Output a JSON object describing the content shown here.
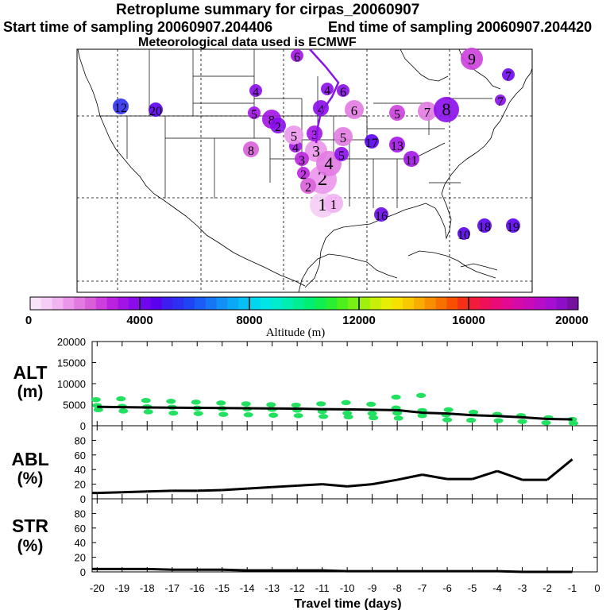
{
  "header": {
    "title": "Retroplume summary for cirpas_20060907",
    "start_label": "Start time of sampling 20060907.204406",
    "end_label": "End time of sampling 20060907.204420",
    "met_label": "Meteorological data used is ECMWF"
  },
  "colorbar": {
    "ticks": [
      "0",
      "4000",
      "8000",
      "12000",
      "16000",
      "20000"
    ],
    "label": "Altitude (m)",
    "range": [
      0,
      20000
    ],
    "colors": [
      "#f9e3f9",
      "#f6cdf6",
      "#f1b3f1",
      "#eb96eb",
      "#e27ae2",
      "#d95fd9",
      "#cc3fdc",
      "#bb22e0",
      "#a214e6",
      "#8a0cea",
      "#6f06ee",
      "#5a00ee",
      "#3c1ef0",
      "#2d2ff2",
      "#1f44f4",
      "#1a5cf6",
      "#1676f6",
      "#1290f6",
      "#0aa9f6",
      "#06c0f4",
      "#00d6f0",
      "#00e6e6",
      "#00eccc",
      "#00eeb0",
      "#00ee92",
      "#00ee72",
      "#10ee50",
      "#2aee30",
      "#4ef01c",
      "#78f014",
      "#a0f00e",
      "#c6f00a",
      "#e6ee06",
      "#f6e000",
      "#f8c800",
      "#f8ac00",
      "#f88e00",
      "#f87000",
      "#f85000",
      "#f63018",
      "#f21c3a",
      "#ee1058",
      "#ea0a78",
      "#e20a92",
      "#d60aa6",
      "#c80ab8",
      "#b80cc6",
      "#a60ed2",
      "#8e0ec8",
      "#76109e"
    ]
  },
  "map": {
    "release_marker": "1",
    "plumes": [
      {
        "label": "1",
        "alt": 600
      },
      {
        "label": "1",
        "alt": 800
      },
      {
        "label": "2",
        "alt": 1500
      },
      {
        "label": "2",
        "alt": 2200
      },
      {
        "label": "2",
        "alt": 3000
      },
      {
        "label": "3",
        "alt": 1400
      },
      {
        "label": "3",
        "alt": 3000
      },
      {
        "label": "4",
        "alt": 1800
      },
      {
        "label": "4",
        "alt": 3500
      },
      {
        "label": "4",
        "alt": 3900
      },
      {
        "label": "4",
        "alt": 3800
      },
      {
        "label": "5",
        "alt": 1200
      },
      {
        "label": "5",
        "alt": 1800
      },
      {
        "label": "5",
        "alt": 2600
      },
      {
        "label": "5",
        "alt": 3200
      },
      {
        "label": "6",
        "alt": 1600
      },
      {
        "label": "6",
        "alt": 3200
      },
      {
        "label": "7",
        "alt": 1800
      },
      {
        "label": "7",
        "alt": 4200
      },
      {
        "label": "8",
        "alt": 2000
      },
      {
        "label": "8",
        "alt": 3300
      },
      {
        "label": "8",
        "alt": 3700
      },
      {
        "label": "9",
        "alt": 2600
      },
      {
        "label": "10",
        "alt": 4600
      },
      {
        "label": "11",
        "alt": 3500
      },
      {
        "label": "12",
        "alt": 5500
      },
      {
        "label": "13",
        "alt": 3500
      },
      {
        "label": "16",
        "alt": 4300
      },
      {
        "label": "17",
        "alt": 4400
      },
      {
        "label": "18",
        "alt": 4600
      },
      {
        "label": "19",
        "alt": 4700
      },
      {
        "label": "20",
        "alt": 4500
      },
      {
        "label": "2",
        "alt": 3600
      },
      {
        "label": "3",
        "alt": 3400
      },
      {
        "label": "4",
        "alt": 3600
      },
      {
        "label": "5",
        "alt": 3800
      },
      {
        "label": "6",
        "alt": 3600
      },
      {
        "label": "7",
        "alt": 3900
      }
    ]
  },
  "chart_data": [
    {
      "type": "scatter",
      "title": "ALT (m)",
      "ylabel_line1": "ALT",
      "ylabel_line2": "(m)",
      "ylim": [
        0,
        20000
      ],
      "yticks": [
        "0",
        "5000",
        "10000",
        "15000",
        "20000"
      ],
      "xlim": [
        -20,
        0
      ],
      "median_line": {
        "x": [
          -20,
          -19,
          -18,
          -17,
          -16,
          -15,
          -14,
          -13,
          -12,
          -11,
          -10,
          -9,
          -8,
          -7,
          -6,
          -5,
          -4,
          -3,
          -2,
          -1
        ],
        "y": [
          4500,
          4400,
          4350,
          4300,
          4250,
          4200,
          4150,
          4100,
          4050,
          3950,
          3900,
          3800,
          3700,
          3100,
          2900,
          2500,
          2300,
          2000,
          1600,
          1500
        ]
      },
      "scatter": {
        "x": [
          -20,
          -20,
          -20,
          -19,
          -19,
          -19,
          -18,
          -18,
          -18,
          -17,
          -17,
          -17,
          -16,
          -16,
          -16,
          -15,
          -15,
          -15,
          -14,
          -14,
          -14,
          -13,
          -13,
          -13,
          -12,
          -12,
          -12,
          -11,
          -11,
          -11,
          -10,
          -10,
          -10,
          -9,
          -9,
          -9,
          -8,
          -8,
          -8,
          -7,
          -7,
          -6,
          -6,
          -6,
          -5,
          -5,
          -4,
          -4,
          -3,
          -3,
          -2,
          -2,
          -1,
          -1,
          -8,
          -7
        ],
        "y": [
          6200,
          4800,
          3800,
          6400,
          4600,
          3500,
          6000,
          4500,
          3300,
          5800,
          4400,
          3000,
          5600,
          4200,
          2900,
          5400,
          4100,
          2700,
          5200,
          4000,
          2600,
          5000,
          3900,
          2500,
          4900,
          3700,
          2400,
          5200,
          3400,
          2200,
          5500,
          3000,
          2100,
          5100,
          2900,
          1900,
          6800,
          3000,
          1800,
          7200,
          2400,
          3800,
          2600,
          1400,
          3200,
          1300,
          2700,
          1200,
          2400,
          1000,
          1900,
          700,
          1500,
          600,
          4200,
          3600
        ]
      }
    },
    {
      "type": "line",
      "title": "ABL (%)",
      "ylabel_line1": "ABL",
      "ylabel_line2": "(%)",
      "ylim": [
        0,
        100
      ],
      "yticks": [
        "0",
        "20",
        "40",
        "60",
        "80"
      ],
      "x": [
        -20,
        -19,
        -18,
        -17,
        -16,
        -15,
        -14,
        -13,
        -12,
        -11,
        -10,
        -9,
        -8,
        -7,
        -6,
        -5,
        -4,
        -3,
        -2,
        -1
      ],
      "values": [
        8,
        9,
        10,
        11,
        11,
        12,
        14,
        16,
        18,
        20,
        17,
        20,
        26,
        33,
        27,
        27,
        38,
        26,
        26,
        54
      ]
    },
    {
      "type": "line",
      "title": "STR (%)",
      "ylabel_line1": "STR",
      "ylabel_line2": "(%)",
      "ylim": [
        0,
        100
      ],
      "yticks": [
        "0",
        "20",
        "40",
        "60",
        "80"
      ],
      "x": [
        -20,
        -19,
        -18,
        -17,
        -16,
        -15,
        -14,
        -13,
        -12,
        -11,
        -10,
        -9,
        -8,
        -7,
        -6,
        -5,
        -4,
        -3,
        -2,
        -1
      ],
      "values": [
        4,
        4,
        4,
        3,
        3,
        3,
        2,
        2,
        2,
        2,
        1,
        1,
        1,
        1,
        1,
        1,
        1,
        0,
        0,
        0
      ]
    }
  ],
  "xaxis": {
    "ticks": [
      "-20",
      "-19",
      "-18",
      "-17",
      "-16",
      "-15",
      "-14",
      "-13",
      "-12",
      "-11",
      "-10",
      "-9",
      "-8",
      "-7",
      "-6",
      "-5",
      "-4",
      "-3",
      "-2",
      "-1",
      "0"
    ],
    "label": "Travel time (days)"
  }
}
